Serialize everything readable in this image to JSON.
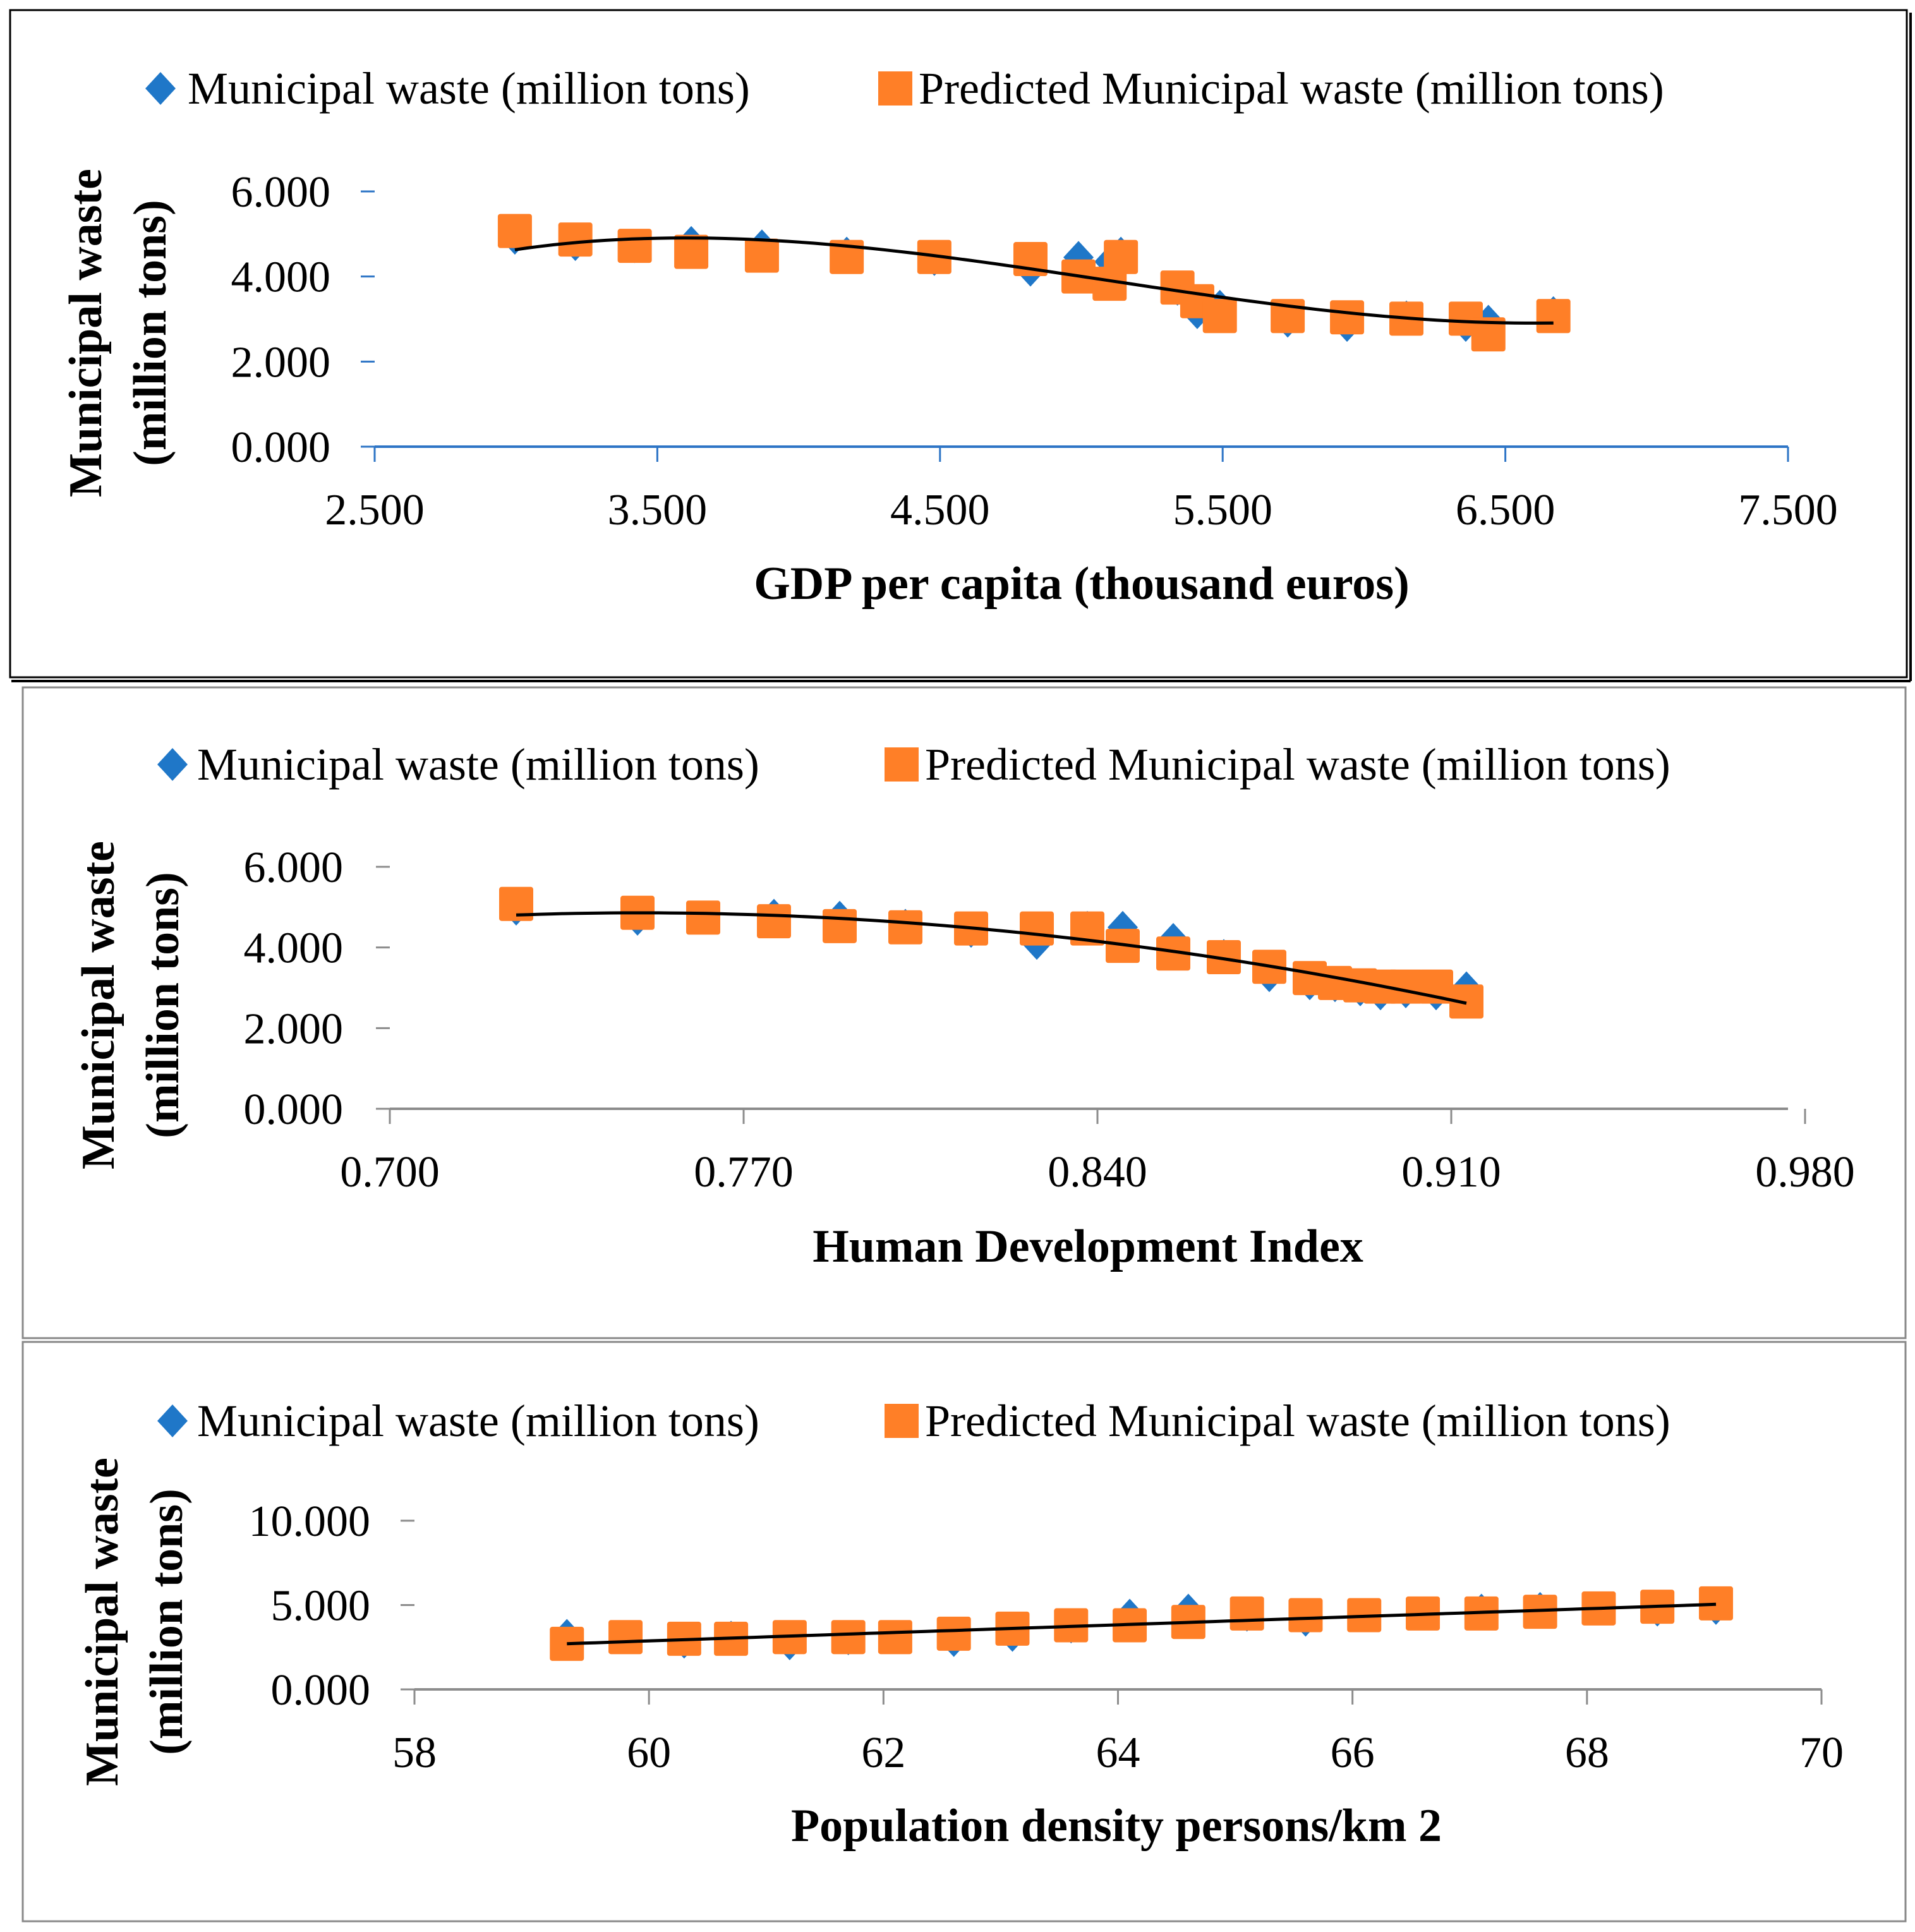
{
  "colors": {
    "actual": "#1F77C8",
    "predicted": "#FF7F27",
    "trend": "#000000",
    "axis1": "#2E75C6",
    "axis23": "#8C8C8C"
  },
  "chart_data": [
    {
      "type": "scatter",
      "legend": [
        "Municipal waste (million tons)",
        "Predicted Municipal waste (million tons)"
      ],
      "legend_position": "top",
      "xlabel": "GDP per capita (thousand euros)",
      "ylabel": [
        "Municipal waste",
        "(million tons)"
      ],
      "xlim": [
        2500,
        7500
      ],
      "ylim": [
        0,
        6000
      ],
      "xticks": [
        "2.500",
        "3.500",
        "4.500",
        "5.500",
        "6.500",
        "7.500"
      ],
      "yticks": [
        "0.000",
        "2.000",
        "4.000",
        "6.000"
      ],
      "trendline": "polynomial",
      "grid": false,
      "x": [
        2996,
        3210,
        3420,
        3620,
        3870,
        4170,
        4480,
        4820,
        4990,
        5100,
        5140,
        5340,
        5410,
        5490,
        5730,
        5940,
        6150,
        6360,
        6440,
        6670
      ],
      "series": [
        {
          "name": "Municipal waste (million tons)",
          "marker": "diamond",
          "values": [
            4900,
            4750,
            4700,
            4800,
            4720,
            4550,
            4400,
            4150,
            4450,
            4350,
            4550,
            3700,
            3150,
            3300,
            2950,
            2850,
            3050,
            2850,
            2950,
            3150
          ]
        },
        {
          "name": "Predicted Municipal waste (million tons)",
          "marker": "square",
          "values": [
            5070,
            4870,
            4720,
            4580,
            4490,
            4460,
            4460,
            4410,
            4000,
            3830,
            4460,
            3740,
            3420,
            3070,
            3070,
            3040,
            3010,
            3010,
            2640,
            3070
          ]
        }
      ]
    },
    {
      "type": "scatter",
      "legend": [
        "Municipal waste (million tons)",
        "Predicted Municipal waste (million tons)"
      ],
      "legend_position": "top",
      "xlabel": "Human Development Index",
      "ylabel": [
        "Municipal waste",
        "(million tons)"
      ],
      "xlim": [
        0.7,
        1.0
      ],
      "ylim": [
        0,
        6000
      ],
      "xticks": [
        "0.700",
        "0.770",
        "0.840",
        "0.910",
        "0.980"
      ],
      "yticks": [
        "0.000",
        "2.000",
        "4.000",
        "6.000"
      ],
      "trendline": "polynomial",
      "grid": false,
      "x": [
        0.725,
        0.749,
        0.762,
        0.776,
        0.789,
        0.802,
        0.815,
        0.828,
        0.838,
        0.845,
        0.855,
        0.865,
        0.874,
        0.882,
        0.887,
        0.892,
        0.896,
        0.901,
        0.907,
        0.913
      ],
      "series": [
        {
          "name": "Municipal waste (million tons)",
          "marker": "diamond",
          "values": [
            4950,
            4700,
            4750,
            4800,
            4750,
            4550,
            4400,
            4100,
            4500,
            4500,
            4200,
            3800,
            3300,
            3100,
            3050,
            2950,
            2850,
            2900,
            2850,
            3000
          ]
        },
        {
          "name": "Predicted Municipal waste (million tons)",
          "marker": "square",
          "values": [
            5080,
            4860,
            4740,
            4650,
            4530,
            4500,
            4470,
            4470,
            4470,
            4040,
            3850,
            3760,
            3520,
            3240,
            3120,
            3060,
            3030,
            3030,
            3030,
            2660
          ]
        }
      ]
    },
    {
      "type": "scatter",
      "legend": [
        "Municipal waste (million tons)",
        "Predicted Municipal waste (million tons)"
      ],
      "legend_position": "top",
      "xlabel": "Population density persons/km 2",
      "ylabel": [
        "Municipal waste",
        "(million tons)"
      ],
      "xlim": [
        58,
        70
      ],
      "ylim": [
        0,
        10000
      ],
      "xticks": [
        "58",
        "60",
        "62",
        "64",
        "66",
        "68",
        "70"
      ],
      "yticks": [
        "0.000",
        "5.000",
        "10.000"
      ],
      "trendline": "linear",
      "grid": false,
      "x": [
        59.3,
        59.8,
        60.3,
        60.7,
        61.2,
        61.7,
        62.1,
        62.6,
        63.1,
        63.6,
        64.1,
        64.6,
        65.1,
        65.6,
        66.1,
        66.6,
        67.1,
        67.6,
        68.1,
        68.6,
        69.1
      ],
      "series": [
        {
          "name": "Municipal waste (million tons)",
          "marker": "diamond",
          "values": [
            3200,
            3100,
            2800,
            3100,
            2700,
            3000,
            3100,
            2900,
            3200,
            3700,
            4400,
            4700,
            4400,
            4100,
            4400,
            4500,
            4700,
            4800,
            4800,
            4700,
            4800
          ]
        },
        {
          "name": "Predicted Municipal waste (million tons)",
          "marker": "square",
          "values": [
            2700,
            3100,
            3000,
            3000,
            3100,
            3100,
            3100,
            3300,
            3600,
            3800,
            3800,
            4000,
            4500,
            4400,
            4400,
            4500,
            4500,
            4600,
            4800,
            4900,
            5100
          ]
        }
      ]
    }
  ]
}
